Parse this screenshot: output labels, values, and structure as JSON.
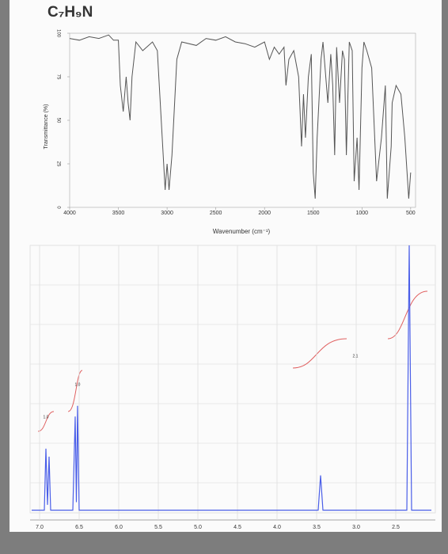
{
  "chart_data": [
    {
      "type": "line",
      "title": "C₇H₉N",
      "xlabel": "Wavenumber (cm⁻¹)",
      "ylabel": "Transmittance (%)",
      "x": [
        4000,
        3900,
        3800,
        3700,
        3600,
        3550,
        3500,
        3480,
        3450,
        3420,
        3400,
        3380,
        3360,
        3320,
        3250,
        3150,
        3100,
        3050,
        3020,
        3000,
        2980,
        2950,
        2900,
        2850,
        2700,
        2600,
        2500,
        2400,
        2300,
        2200,
        2100,
        2000,
        1950,
        1900,
        1850,
        1800,
        1780,
        1750,
        1700,
        1650,
        1620,
        1600,
        1580,
        1550,
        1520,
        1500,
        1480,
        1460,
        1420,
        1400,
        1350,
        1320,
        1300,
        1280,
        1260,
        1230,
        1200,
        1180,
        1160,
        1130,
        1100,
        1080,
        1050,
        1030,
        1000,
        980,
        950,
        900,
        850,
        800,
        760,
        740,
        700,
        690,
        650,
        600,
        560,
        520,
        500
      ],
      "series": [
        {
          "name": "IR",
          "color": "#555555",
          "values": [
            97,
            96,
            98,
            97,
            99,
            96,
            96,
            70,
            55,
            75,
            60,
            50,
            75,
            95,
            90,
            95,
            90,
            40,
            10,
            25,
            10,
            30,
            85,
            95,
            93,
            97,
            96,
            98,
            95,
            94,
            92,
            95,
            85,
            92,
            88,
            92,
            70,
            85,
            90,
            75,
            35,
            65,
            40,
            75,
            88,
            20,
            5,
            40,
            85,
            95,
            60,
            88,
            70,
            30,
            92,
            60,
            90,
            85,
            30,
            95,
            90,
            15,
            40,
            10,
            80,
            95,
            90,
            80,
            15,
            40,
            70,
            5,
            35,
            60,
            70,
            65,
            40,
            5,
            20
          ]
        }
      ],
      "xlim": [
        4000,
        450
      ],
      "ylim": [
        0,
        100
      ],
      "xticks": [
        4000,
        3500,
        3000,
        2500,
        2000,
        1500,
        1000,
        500
      ],
      "yticks": [
        0,
        25,
        50,
        75,
        100
      ]
    },
    {
      "type": "line",
      "x": [
        7.1,
        6.94,
        6.92,
        6.9,
        6.88,
        6.86,
        6.58,
        6.55,
        6.535,
        6.52,
        6.5,
        3.48,
        3.45,
        3.42,
        2.36,
        2.33,
        2.3,
        2.05
      ],
      "series": [
        {
          "name": "1H NMR",
          "color": "#4a5ee8",
          "values": [
            1,
            1,
            24,
            3,
            21,
            1,
            1,
            36,
            4,
            40,
            1,
            1,
            14,
            1,
            1,
            100,
            1,
            1
          ]
        }
      ],
      "xlim": [
        7.12,
        2.0
      ],
      "ylim": [
        0,
        100
      ],
      "xticks": [
        {
          "value": 7,
          "label": "7.0"
        },
        6.5,
        {
          "value": 6,
          "label": "6.0"
        },
        5.5,
        {
          "value": 5,
          "label": "5.0"
        },
        4.5,
        {
          "value": 4,
          "label": "4.0"
        },
        3.5,
        {
          "value": 3,
          "label": "3.0"
        },
        2.5
      ],
      "annotations": [
        "1.0",
        "1.0",
        "2.1"
      ]
    }
  ]
}
